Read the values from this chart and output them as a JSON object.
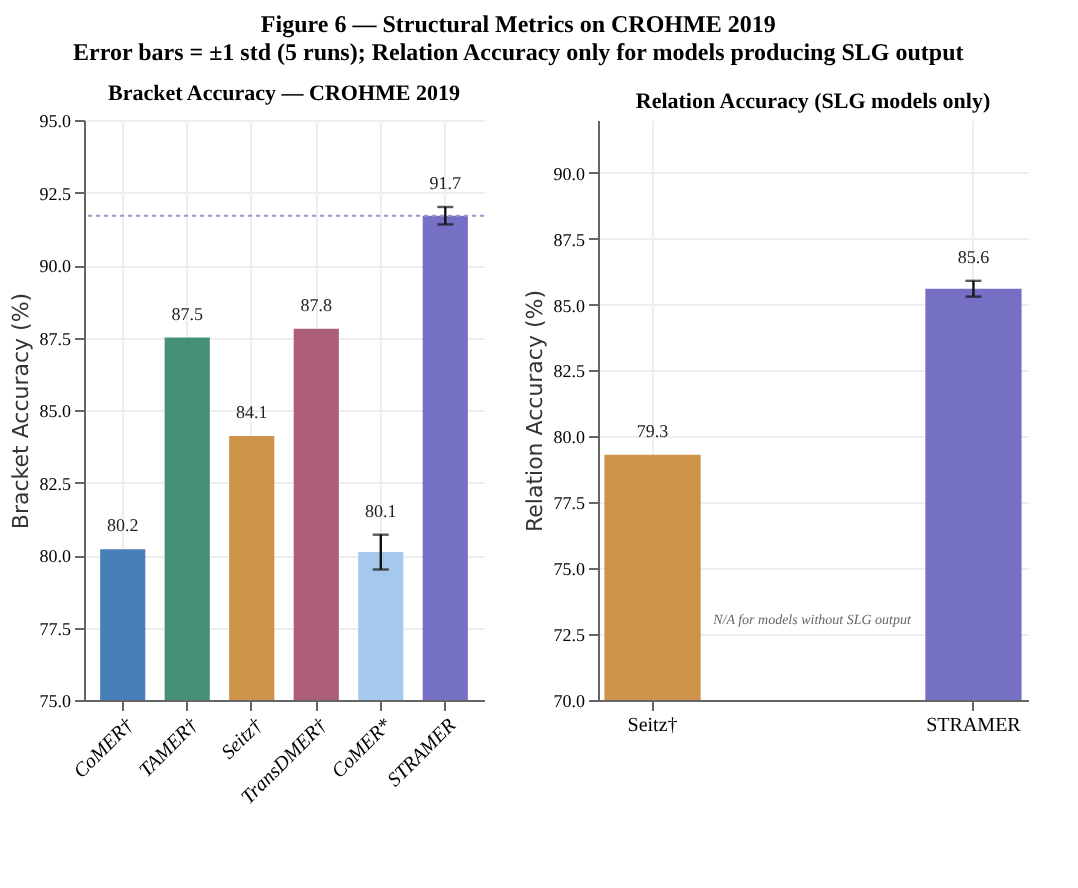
{
  "chart_data": [
    {
      "type": "bar",
      "title": "Bracket Accuracy — CROHME 2019",
      "ylabel": "Bracket Accuracy (%)",
      "annotations": [
        "Figure 6 — Structural Metrics on CROHME 2019",
        "Error bars = ±1 std (5 runs); Relation Accuracy only for models producing SLG output"
      ],
      "categories": [
        "CoMER†",
        "TAMER†",
        "Seitz†",
        "TransDMER†",
        "CoMER*",
        "STRAMER"
      ],
      "values": [
        80.2,
        87.5,
        84.1,
        87.8,
        80.1,
        91.7
      ],
      "colors": [
        "#3f78b5",
        "#3a8a6e",
        "#c98d3f",
        "#a85570",
        "#9fc6ec",
        "#6f68c2"
      ],
      "errors": [
        null,
        null,
        null,
        null,
        0.6,
        0.3
      ],
      "ylim": [
        75,
        95
      ],
      "yticks": [
        {
          "value": 75,
          "label": "75.0"
        },
        77.5,
        {
          "value": 80,
          "label": "80.0"
        },
        82.5,
        {
          "value": 85,
          "label": "85.0"
        },
        87.5,
        {
          "value": 90,
          "label": "90.0"
        },
        92.5,
        {
          "value": 95,
          "label": "95.0"
        }
      ],
      "ref_lines": [
        {
          "axis": "y",
          "value": 91.7,
          "color": "#9a96d0",
          "line_style": "dotted"
        }
      ],
      "grid": true,
      "data_labels": true
    },
    {
      "type": "bar",
      "title": "Relation Accuracy (SLG models only)",
      "ylabel": "Relation Accuracy (%)",
      "annotations": [
        "N/A for models without SLG output"
      ],
      "categories": [
        "Seitz†",
        "STRAMER"
      ],
      "values": [
        79.3,
        85.6
      ],
      "colors": [
        "#c98d3f",
        "#6f68c2"
      ],
      "errors": [
        null,
        0.3
      ],
      "ylim": [
        70,
        92
      ],
      "yticks": [
        {
          "value": 70,
          "label": "70.0"
        },
        72.5,
        {
          "value": 75,
          "label": "75.0"
        },
        77.5,
        {
          "value": 80,
          "label": "80.0"
        },
        82.5,
        {
          "value": 85,
          "label": "85.0"
        },
        87.5,
        {
          "value": 90,
          "label": "90.0"
        }
      ],
      "grid": true,
      "data_labels": true
    }
  ]
}
